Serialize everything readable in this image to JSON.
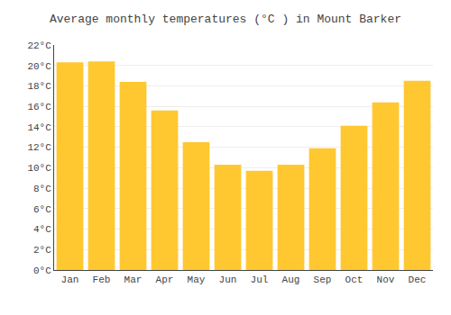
{
  "chart_data": {
    "type": "bar",
    "title": "Average monthly temperatures (°C ) in Mount Barker",
    "categories": [
      "Jan",
      "Feb",
      "Mar",
      "Apr",
      "May",
      "Jun",
      "Jul",
      "Aug",
      "Sep",
      "Oct",
      "Nov",
      "Dec"
    ],
    "values": [
      20.3,
      20.4,
      18.4,
      15.6,
      12.5,
      10.3,
      9.7,
      10.3,
      11.9,
      14.1,
      16.4,
      18.5
    ],
    "color": "#FFC830",
    "ylim": [
      0,
      22
    ],
    "yticks": [
      {
        "value": 0,
        "label": "0°C"
      },
      {
        "value": 2,
        "label": "2°C"
      },
      {
        "value": 4,
        "label": "4°C"
      },
      {
        "value": 6,
        "label": "6°C"
      },
      {
        "value": 8,
        "label": "8°C"
      },
      {
        "value": 10,
        "label": "10°C"
      },
      {
        "value": 12,
        "label": "12°C"
      },
      {
        "value": 14,
        "label": "14°C"
      },
      {
        "value": 16,
        "label": "16°C"
      },
      {
        "value": 18,
        "label": "18°C"
      },
      {
        "value": 20,
        "label": "20°C"
      },
      {
        "value": 22,
        "label": "22°C"
      }
    ],
    "grid": true
  }
}
